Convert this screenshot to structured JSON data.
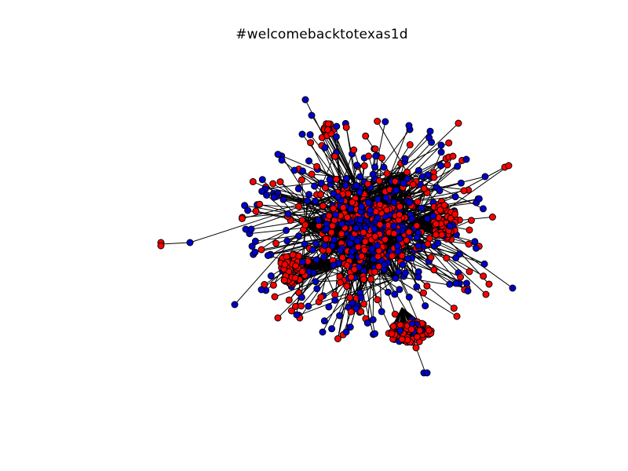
{
  "figure": {
    "title": "#welcomebacktotexas1d"
  },
  "graph": {
    "layout": "force-directed",
    "node_colors": {
      "red": "#ff0000",
      "blue": "#0000cc"
    },
    "node_stroke": "#000000",
    "edge_color": "#000000"
  }
}
